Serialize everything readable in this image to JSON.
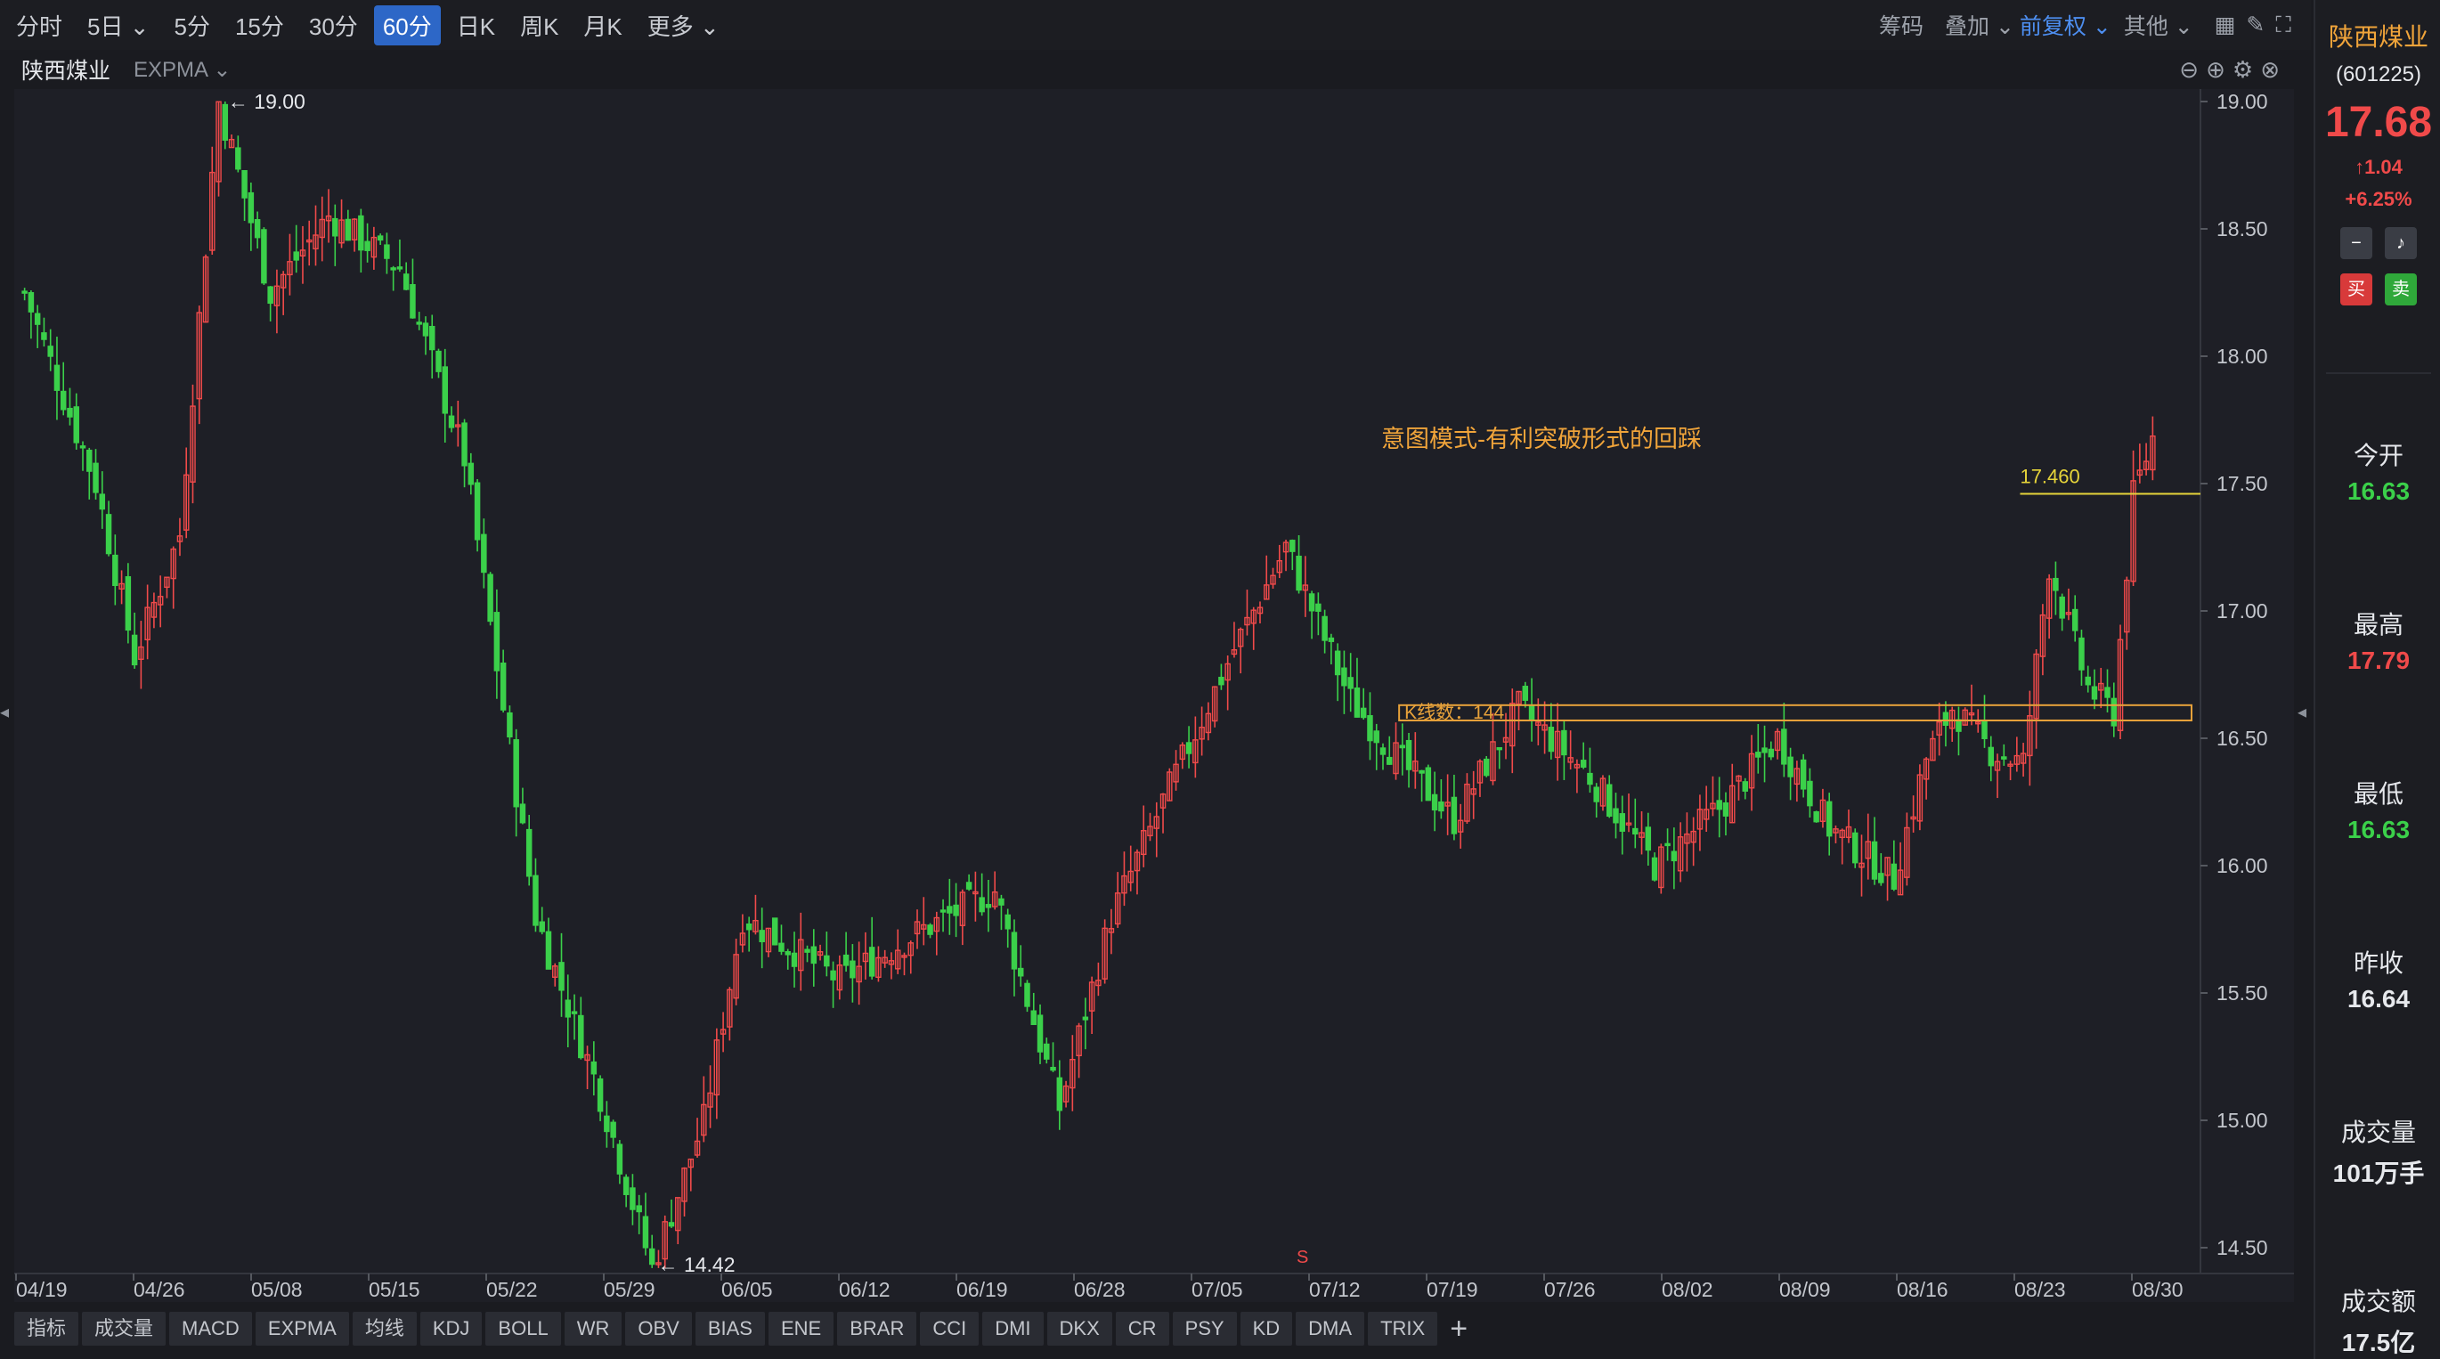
{
  "toolbar": {
    "timeframes": [
      "分时",
      "5日 ⌄",
      "5分",
      "15分",
      "30分",
      "60分",
      "日K",
      "周K",
      "月K",
      "更多 ⌄"
    ],
    "active_index": 5,
    "right": {
      "chips": "筹码",
      "overlay": "叠加 ⌄",
      "adjust": "前复权 ⌄",
      "other": "其他 ⌄"
    }
  },
  "title": {
    "stock": "陕西煤业",
    "indicator": "EXPMA ⌄"
  },
  "sidebar": {
    "name": "陕西煤业",
    "code": "(601225)",
    "price": "17.68",
    "change": "↑1.04",
    "pct": "+6.25%",
    "buy": "买",
    "sell": "卖",
    "stats": [
      {
        "k": "今开",
        "v": "16.63",
        "c": "#3bd04a"
      },
      {
        "k": "最高",
        "v": "17.79",
        "c": "#f04a4a"
      },
      {
        "k": "最低",
        "v": "16.63",
        "c": "#3bd04a"
      },
      {
        "k": "昨收",
        "v": "16.64",
        "c": "#e6e8ec"
      },
      {
        "k": "成交量",
        "v": "101万手",
        "c": "#e6e8ec"
      },
      {
        "k": "成交额",
        "v": "17.5亿",
        "c": "#e6e8ec"
      }
    ]
  },
  "tabs": [
    "指标",
    "成交量",
    "MACD",
    "EXPMA",
    "均线",
    "KDJ",
    "BOLL",
    "WR",
    "OBV",
    "BIAS",
    "ENE",
    "BRAR",
    "CCI",
    "DMI",
    "DKX",
    "CR",
    "PSY",
    "KD",
    "DMA",
    "TRIX",
    "+"
  ],
  "chart_data": {
    "type": "candlestick",
    "ylim": [
      14.42,
      19.05
    ],
    "yticks": [
      "19.00",
      "18.50",
      "18.00",
      "17.50",
      "17.00",
      "16.50",
      "16.00",
      "15.50",
      "15.00",
      "14.50"
    ],
    "xticks": [
      "04/19",
      "04/26",
      "05/08",
      "05/15",
      "05/22",
      "05/29",
      "06/05",
      "06/12",
      "06/19",
      "06/28",
      "07/05",
      "07/12",
      "07/19",
      "07/26",
      "08/02",
      "08/09",
      "08/16",
      "08/23",
      "08/30"
    ],
    "high_label": "19.00",
    "low_label": "14.42",
    "annotation": "意图模式-有利突破形式的回踩",
    "level_label": "17.460",
    "level_value": 17.46,
    "box_label": "K线数：144",
    "box_range": [
      16.57,
      16.63
    ],
    "marker": "S",
    "candles_count": 330,
    "up_color": "#f04a4a",
    "down_color": "#3bd04a",
    "path": [
      [
        0,
        18.25
      ],
      [
        20,
        17.5
      ],
      [
        32,
        16.82
      ],
      [
        45,
        17.3
      ],
      [
        58,
        19.0
      ],
      [
        72,
        18.25
      ],
      [
        90,
        18.55
      ],
      [
        110,
        18.35
      ],
      [
        130,
        17.6
      ],
      [
        150,
        15.8
      ],
      [
        170,
        15.1
      ],
      [
        185,
        14.42
      ],
      [
        200,
        15.0
      ],
      [
        212,
        15.8
      ],
      [
        240,
        15.55
      ],
      [
        265,
        15.75
      ],
      [
        285,
        15.9
      ],
      [
        305,
        15.05
      ],
      [
        320,
        15.8
      ],
      [
        335,
        16.25
      ],
      [
        355,
        16.85
      ],
      [
        372,
        17.25
      ],
      [
        390,
        16.65
      ],
      [
        405,
        16.4
      ],
      [
        420,
        16.18
      ],
      [
        440,
        16.62
      ],
      [
        460,
        16.35
      ],
      [
        480,
        16.0
      ],
      [
        500,
        16.25
      ],
      [
        515,
        16.5
      ],
      [
        530,
        16.15
      ],
      [
        550,
        15.95
      ],
      [
        560,
        16.42
      ],
      [
        568,
        16.62
      ],
      [
        578,
        16.45
      ],
      [
        588,
        16.4
      ],
      [
        595,
        17.18
      ],
      [
        608,
        16.7
      ],
      [
        614,
        16.6
      ],
      [
        620,
        17.45
      ],
      [
        627,
        17.68
      ]
    ]
  }
}
